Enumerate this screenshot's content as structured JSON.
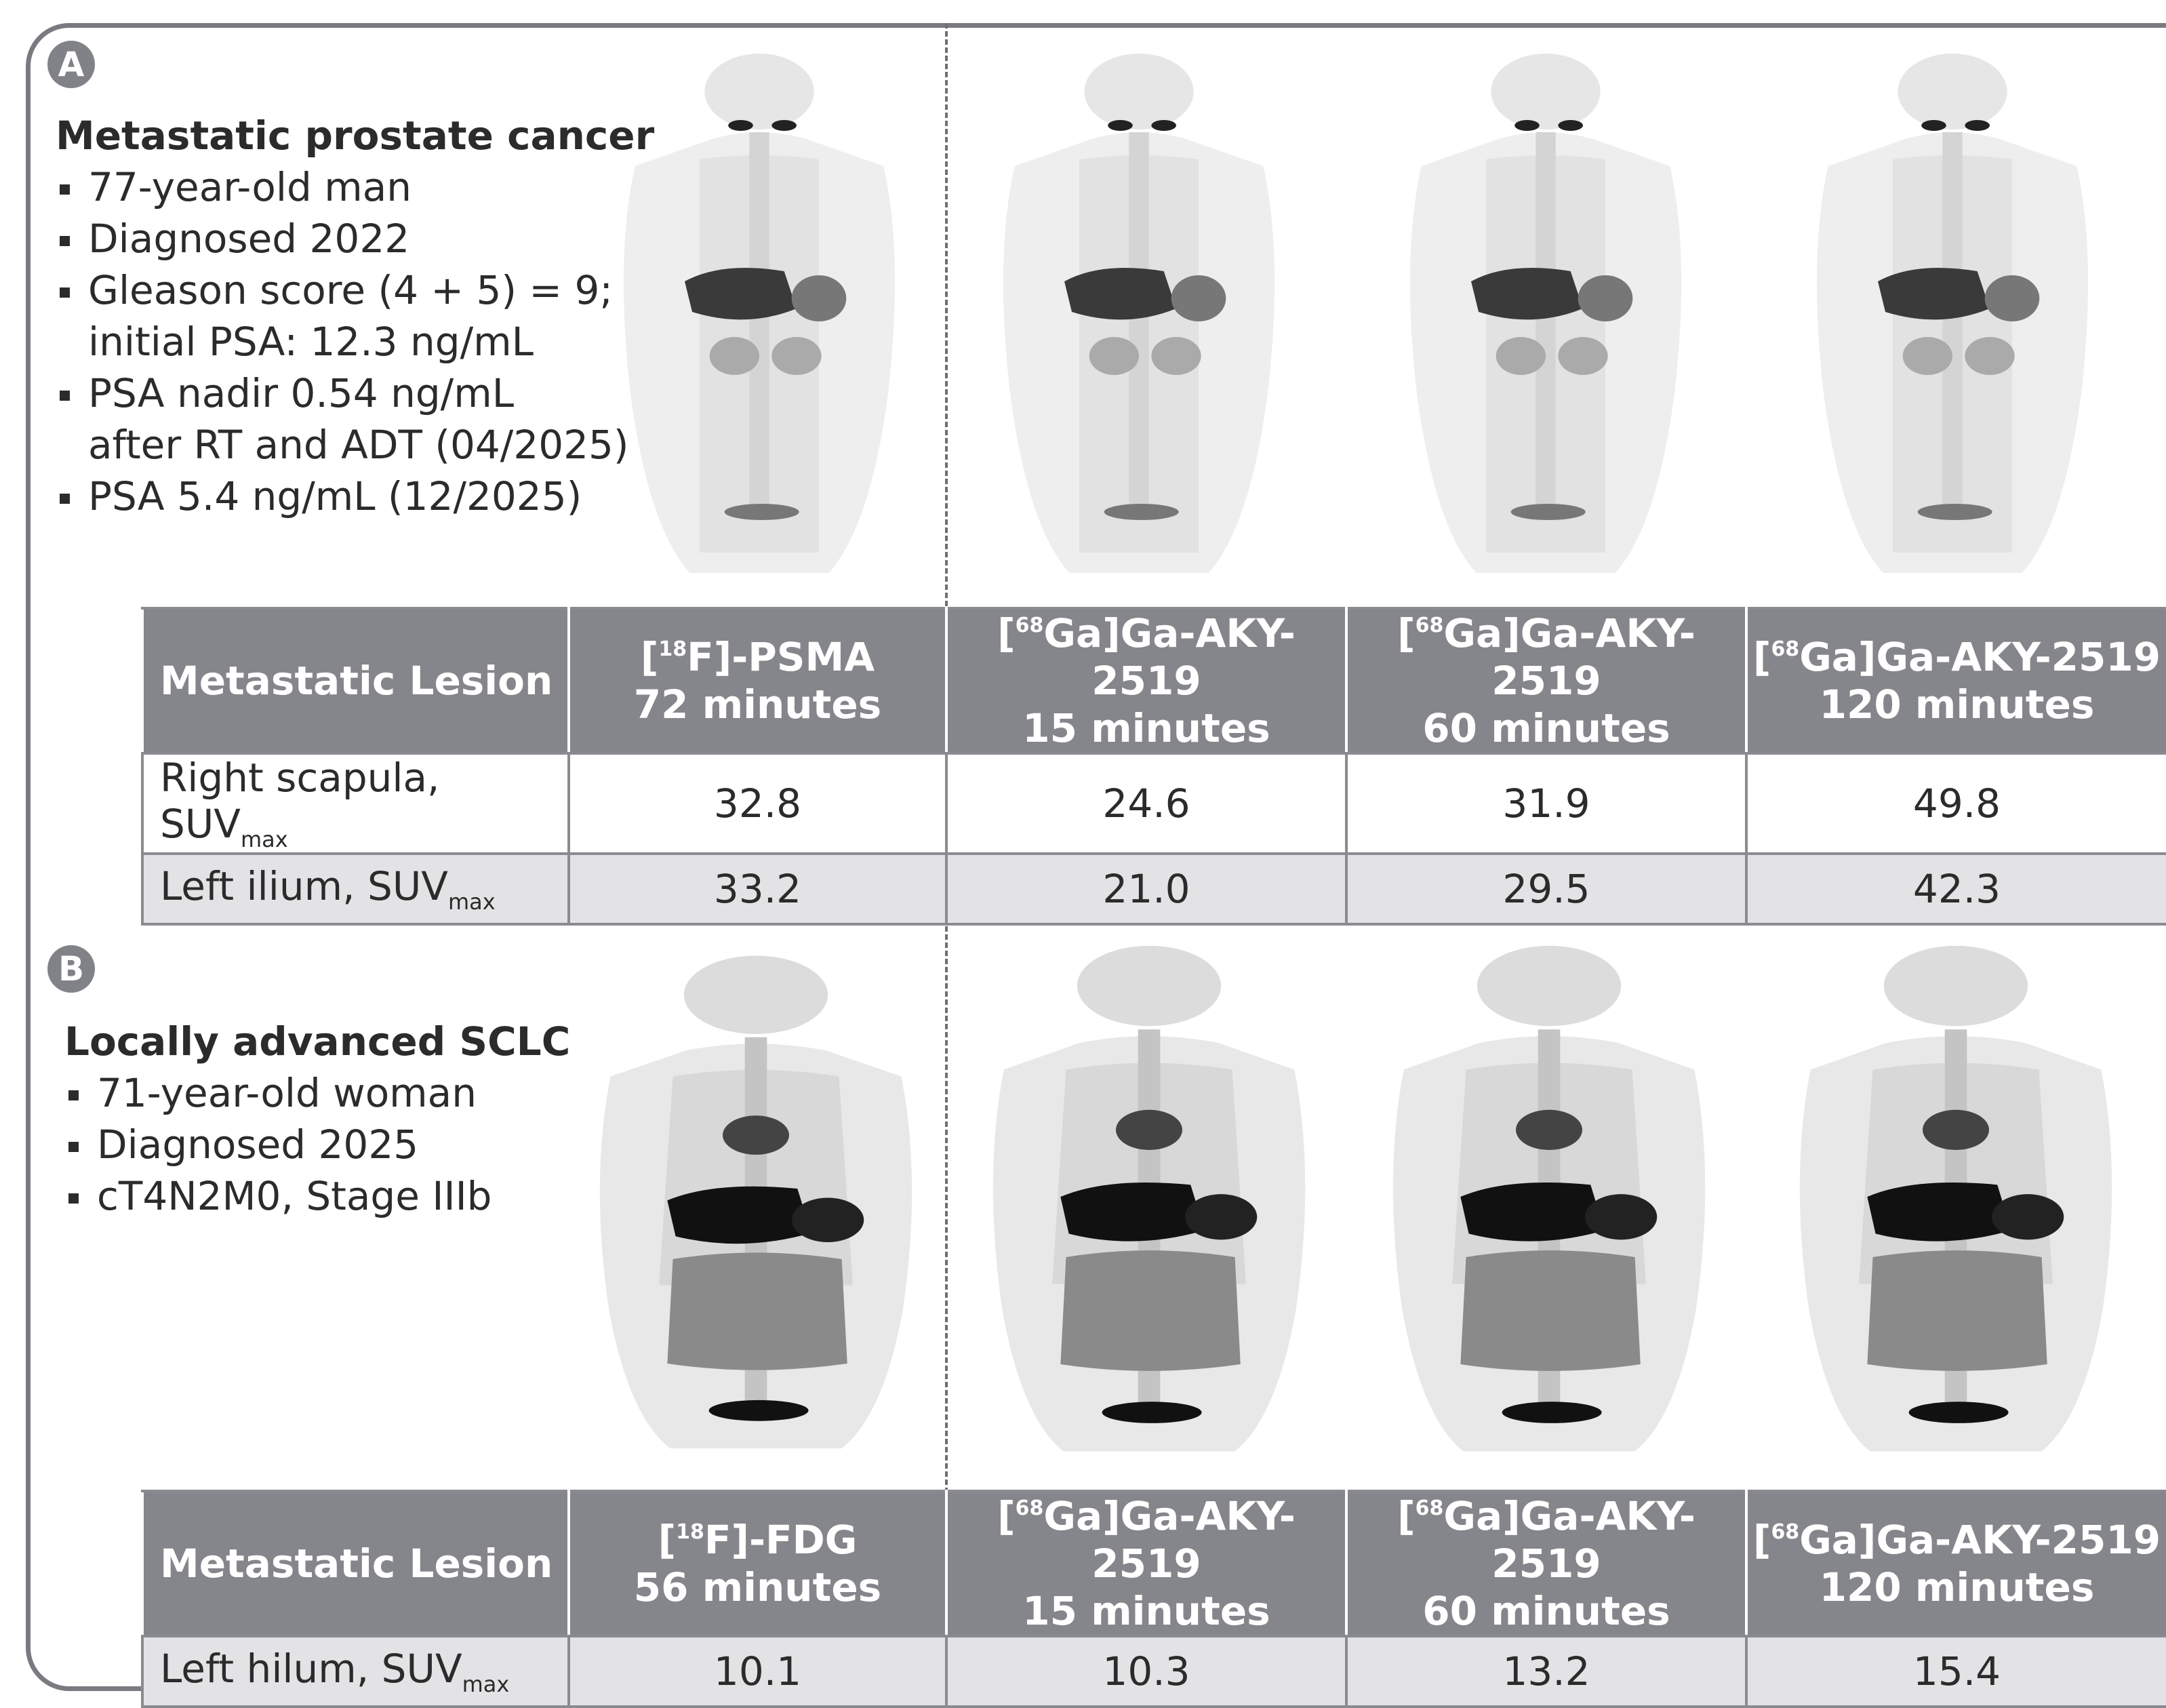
{
  "panel_a": {
    "badge": "A",
    "title": "Metastatic prostate cancer",
    "bullets": [
      "77-year-old man",
      "Diagnosed 2022",
      "Gleason score (4 + 5) = 9;",
      "PSA nadir 0.54 ng/mL",
      "PSA 5.4 ng/mL (12/2025)"
    ],
    "bullet_continuations": [
      "initial PSA: 12.3 ng/mL",
      "after RT and ADT (04/2025)"
    ],
    "table": {
      "header_first": "Metastatic Lesion",
      "columns": [
        {
          "pre": "[",
          "sup": "18",
          "iso": "F]-PSMA",
          "time": "72 minutes"
        },
        {
          "pre": "[",
          "sup": "68",
          "iso": "Ga]Ga-AKY-2519",
          "time": "15 minutes"
        },
        {
          "pre": "[",
          "sup": "68",
          "iso": "Ga]Ga-AKY-2519",
          "time": "60 minutes"
        },
        {
          "pre": "[",
          "sup": "68",
          "iso": "Ga]Ga-AKY-2519",
          "time": "120 minutes"
        }
      ],
      "rows": [
        {
          "label": "Right scapula, SUV",
          "sub": "max",
          "values": [
            "32.8",
            "24.6",
            "31.9",
            "49.8"
          ]
        },
        {
          "label": "Left ilium, SUV",
          "sub": "max",
          "values": [
            "33.2",
            "21.0",
            "29.5",
            "42.3"
          ]
        }
      ]
    }
  },
  "panel_b": {
    "badge": "B",
    "title": "Locally advanced SCLC",
    "bullets": [
      "71-year-old woman",
      "Diagnosed 2025",
      "cT4N2M0, Stage IIIb"
    ],
    "table": {
      "header_first": "Metastatic Lesion",
      "columns": [
        {
          "pre": "[",
          "sup": "18",
          "iso": "F]-FDG",
          "time": "56 minutes"
        },
        {
          "pre": "[",
          "sup": "68",
          "iso": "Ga]Ga-AKY-2519",
          "time": "15 minutes"
        },
        {
          "pre": "[",
          "sup": "68",
          "iso": "Ga]Ga-AKY-2519",
          "time": "60 minutes"
        },
        {
          "pre": "[",
          "sup": "68",
          "iso": "Ga]Ga-AKY-2519",
          "time": "120 minutes"
        }
      ],
      "rows": [
        {
          "label": "Left hilum, SUV",
          "sub": "max",
          "values": [
            "10.1",
            "10.3",
            "13.2",
            "15.4"
          ]
        }
      ]
    }
  },
  "colors": {
    "frame": "#7a7b80",
    "header_fill": "#85868b",
    "alt_row": "#e3e3e5",
    "uptake": "#111111"
  }
}
